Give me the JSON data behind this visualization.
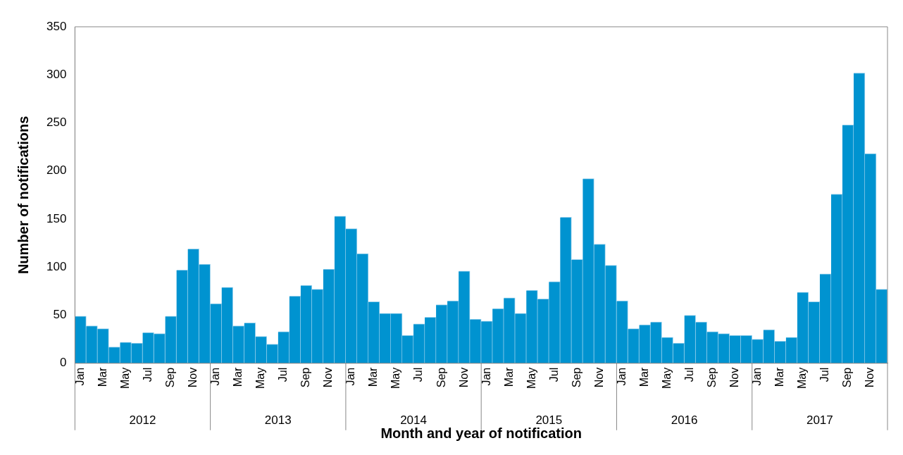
{
  "chart_data": {
    "type": "bar",
    "xlabel": "Month and year of notification",
    "ylabel": "Number of notifications",
    "categories": [
      "Jan",
      null,
      "Mar",
      null,
      "May",
      null,
      "Jul",
      null,
      "Sep",
      null,
      "Nov",
      null,
      "Jan",
      null,
      "Mar",
      null,
      "May",
      null,
      "Jul",
      null,
      "Sep",
      null,
      "Nov",
      null,
      "Jan",
      null,
      "Mar",
      null,
      "May",
      null,
      "Jul",
      null,
      "Sep",
      null,
      "Nov",
      null,
      "Jan",
      null,
      "Mar",
      null,
      "May",
      null,
      "Jul",
      null,
      "Sep",
      null,
      "Nov",
      null,
      "Jan",
      null,
      "Mar",
      null,
      "May",
      null,
      "Jul",
      null,
      "Sep",
      null,
      "Nov",
      null,
      "Jan",
      null,
      "Mar",
      null,
      "May",
      null,
      "Jul",
      null,
      "Sep",
      null,
      "Nov",
      null
    ],
    "values": [
      49,
      39,
      36,
      17,
      22,
      21,
      32,
      31,
      49,
      97,
      119,
      103,
      62,
      79,
      39,
      42,
      28,
      20,
      33,
      70,
      81,
      77,
      98,
      153,
      140,
      114,
      64,
      52,
      52,
      29,
      41,
      48,
      61,
      65,
      96,
      46,
      44,
      57,
      68,
      52,
      76,
      67,
      85,
      152,
      108,
      192,
      124,
      102,
      65,
      36,
      40,
      43,
      27,
      21,
      50,
      43,
      33,
      31,
      29,
      29,
      25,
      35,
      23,
      27,
      74,
      64,
      93,
      176,
      248,
      302,
      218,
      77
    ],
    "color": "#0093d0",
    "annotations": [
      "2012",
      "2013",
      "2014",
      "2015",
      "2016",
      "2017"
    ],
    "ylim": [
      0,
      350
    ],
    "yticks": [
      0,
      50,
      100,
      150,
      200,
      250,
      300,
      350
    ],
    "grid": false,
    "legend": false
  }
}
